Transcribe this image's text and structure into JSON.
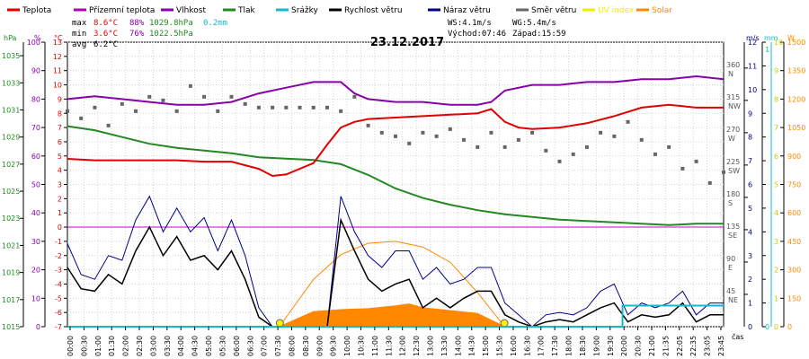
{
  "chart_data": {
    "type": "line",
    "title": "23.12.2017",
    "xlabel": "čas",
    "x_ticks": [
      "00:00",
      "00:30",
      "01:00",
      "01:30",
      "02:00",
      "02:30",
      "03:00",
      "03:30",
      "04:00",
      "04:30",
      "05:00",
      "05:30",
      "06:00",
      "06:30",
      "07:00",
      "07:30",
      "08:00",
      "08:30",
      "09:00",
      "09:30",
      "10:00",
      "10:30",
      "11:00",
      "11:30",
      "12:00",
      "12:30",
      "13:00",
      "13:30",
      "14:00",
      "14:30",
      "15:00",
      "15:30",
      "16:00",
      "16:30",
      "17:00",
      "17:30",
      "18:00",
      "18:30",
      "19:00",
      "19:30",
      "20:00",
      "20:30",
      "21:00",
      "21:35",
      "22:05",
      "22:35",
      "23:05",
      "23:45"
    ],
    "legend": [
      {
        "name": "Teplota",
        "color": "#e00000"
      },
      {
        "name": "Přízemní teplota",
        "color": "#b000b0"
      },
      {
        "name": "Vlhkost",
        "color": "#8800aa"
      },
      {
        "name": "Tlak",
        "color": "#228822"
      },
      {
        "name": "Srážky",
        "color": "#11bbcc"
      },
      {
        "name": "Rychlost větru",
        "color": "#000000"
      },
      {
        "name": "Náraz větru",
        "color": "#000088"
      },
      {
        "name": "Směr větru",
        "color": "#666666"
      },
      {
        "name": "UV index",
        "color": "#eeee00"
      },
      {
        "name": "Solar",
        "color": "#ff8800"
      }
    ],
    "stats": {
      "max": {
        "label": "max",
        "temp": "8.6°C",
        "hum": "88%",
        "press": "1029.8hPa",
        "rain": "0.2mm"
      },
      "min": {
        "label": "min",
        "temp": "3.6°C",
        "hum": "76%",
        "press": "1022.5hPa"
      },
      "avg": {
        "label": "avg",
        "temp": "6.2°C"
      }
    },
    "info": {
      "ws": "WS:4.1m/s",
      "wg": "WG:5.4m/s",
      "sunrise": "Východ:07:46",
      "sunset": "Západ:15:59"
    },
    "axes": {
      "hpa": {
        "unit": "hPa",
        "ticks": [
          "1035",
          "1033",
          "1031",
          "1029",
          "1027",
          "1025",
          "1023",
          "1021",
          "1019",
          "1017",
          "1015"
        ],
        "range": [
          1015,
          1036
        ]
      },
      "pct": {
        "unit": "%",
        "ticks": [
          "100",
          "90",
          "80",
          "70",
          "60",
          "50",
          "40",
          "30",
          "20",
          "10",
          "0"
        ],
        "range": [
          0,
          100
        ]
      },
      "temp": {
        "unit": "°C",
        "ticks": [
          "13",
          "12",
          "11",
          "10",
          "9",
          "8",
          "7",
          "6",
          "5",
          "4",
          "3",
          "2",
          "1",
          "0",
          "-1",
          "-2",
          "-3",
          "-4",
          "-5",
          "-6",
          "-7"
        ],
        "range": [
          -7,
          13
        ]
      },
      "dir": {
        "ticks": [
          [
            "360",
            "N"
          ],
          [
            "315",
            "NW"
          ],
          [
            "270",
            "W"
          ],
          [
            "225",
            "SW"
          ],
          [
            "180",
            "S"
          ],
          [
            "135",
            "SE"
          ],
          [
            "90",
            "E"
          ],
          [
            "45",
            "NE"
          ]
        ],
        "range": [
          0,
          360
        ]
      },
      "ms": {
        "unit": "m/s",
        "ticks": [
          "12",
          "11",
          "10",
          "9",
          "8",
          "7",
          "6",
          "5",
          "4",
          "3",
          "2",
          "1",
          "0"
        ],
        "range": [
          0,
          12
        ]
      },
      "mm": {
        "unit": "mm",
        "ticks": [
          "1",
          "0"
        ]
      },
      "w": {
        "unit": "W",
        "ticks": [
          "1500",
          "1350",
          "1200",
          "1050",
          "900",
          "750",
          "600",
          "450",
          "300",
          "150",
          "0"
        ],
        "range": [
          0,
          1500
        ]
      }
    },
    "series": {
      "temperature": {
        "unit": "°C",
        "hours": [
          0,
          1,
          2,
          3,
          4,
          5,
          6,
          7,
          7.5,
          8,
          9,
          9.5,
          10,
          10.5,
          11,
          12,
          13,
          14,
          15,
          15.5,
          16,
          16.5,
          17,
          18,
          19,
          20,
          21,
          22,
          23,
          24
        ],
        "values": [
          4.8,
          4.7,
          4.7,
          4.7,
          4.7,
          4.6,
          4.6,
          4.1,
          3.6,
          3.7,
          4.5,
          5.8,
          7.0,
          7.4,
          7.6,
          7.7,
          7.8,
          7.9,
          8.0,
          8.3,
          7.4,
          7.0,
          6.9,
          7.0,
          7.3,
          7.8,
          8.4,
          8.6,
          8.4,
          8.4
        ]
      },
      "humidity": {
        "unit": "%",
        "hours": [
          0,
          1,
          2,
          3,
          4,
          5,
          6,
          7,
          8,
          9,
          10,
          10.5,
          11,
          12,
          13,
          14,
          15,
          15.5,
          16,
          17,
          18,
          19,
          20,
          21,
          22,
          23,
          24
        ],
        "values": [
          80,
          81,
          80,
          79,
          78,
          78,
          79,
          82,
          84,
          86,
          86,
          82,
          80,
          79,
          79,
          78,
          78,
          79,
          83,
          85,
          85,
          86,
          86,
          87,
          87,
          88,
          87
        ]
      },
      "pressure": {
        "unit": "hPa",
        "hours": [
          0,
          1,
          2,
          3,
          4,
          5,
          6,
          7,
          8,
          9,
          10,
          11,
          12,
          13,
          14,
          15,
          16,
          17,
          18,
          19,
          20,
          21,
          22,
          23,
          24
        ],
        "values": [
          1029.8,
          1029.5,
          1029.0,
          1028.5,
          1028.2,
          1028.0,
          1027.8,
          1027.5,
          1027.4,
          1027.3,
          1027.0,
          1026.2,
          1025.2,
          1024.5,
          1024.0,
          1023.6,
          1023.3,
          1023.1,
          1022.9,
          1022.8,
          1022.7,
          1022.6,
          1022.5,
          1022.6,
          1022.6
        ]
      },
      "rain": {
        "unit": "mm",
        "hours": [
          0,
          20.3,
          20.3,
          24
        ],
        "values": [
          0,
          0,
          0.2,
          0.2
        ]
      },
      "wind_speed": {
        "unit": "m/s",
        "hours": [
          0,
          0.5,
          1,
          1.5,
          2,
          2.5,
          3,
          3.5,
          4,
          4.5,
          5,
          5.5,
          6,
          6.5,
          7,
          7.5,
          8,
          8.5,
          9,
          9.5,
          10,
          10.5,
          11,
          11.5,
          12,
          12.5,
          13,
          13.5,
          14,
          14.5,
          15,
          15.5,
          16,
          16.5,
          17,
          17.5,
          18,
          18.5,
          19,
          19.5,
          20,
          20.5,
          21,
          21.5,
          22,
          22.5,
          23,
          23.5,
          24
        ],
        "values": [
          2.5,
          1.6,
          1.5,
          2.2,
          1.8,
          3.2,
          4.2,
          3.0,
          3.8,
          2.8,
          3.0,
          2.4,
          3.2,
          2.0,
          0.4,
          0,
          0,
          0,
          0,
          0,
          4.5,
          3.2,
          2.0,
          1.5,
          1.8,
          2.0,
          0.8,
          1.2,
          0.8,
          1.2,
          1.5,
          1.5,
          0.5,
          0.2,
          0,
          0.2,
          0.3,
          0.2,
          0.5,
          0.8,
          1.0,
          0.2,
          0.5,
          0.4,
          0.5,
          1.0,
          0.2,
          0.5,
          0.5
        ]
      },
      "wind_gust": {
        "unit": "m/s",
        "hours": [
          0,
          0.5,
          1,
          1.5,
          2,
          2.5,
          3,
          3.5,
          4,
          4.5,
          5,
          5.5,
          6,
          6.5,
          7,
          7.5,
          8,
          8.5,
          9,
          9.5,
          10,
          10.5,
          11,
          11.5,
          12,
          12.5,
          13,
          13.5,
          14,
          14.5,
          15,
          15.5,
          16,
          16.5,
          17,
          17.5,
          18,
          18.5,
          19,
          19.5,
          20,
          20.5,
          21,
          21.5,
          22,
          22.5,
          23,
          23.5,
          24
        ],
        "values": [
          3.5,
          2.2,
          2.0,
          3.0,
          2.8,
          4.5,
          5.5,
          4.0,
          5.0,
          4.0,
          4.6,
          3.2,
          4.5,
          3.0,
          0.8,
          0,
          0,
          0,
          0,
          0,
          5.5,
          4.0,
          3.0,
          2.5,
          3.2,
          3.2,
          2.0,
          2.5,
          1.8,
          2.0,
          2.5,
          2.5,
          1.0,
          0.5,
          0,
          0.5,
          0.6,
          0.5,
          0.8,
          1.5,
          1.8,
          0.5,
          1.0,
          0.8,
          1.0,
          1.5,
          0.5,
          1.0,
          1.0
        ]
      },
      "solar": {
        "unit": "W/m²",
        "hours": [
          7.75,
          9,
          10,
          11,
          12,
          12.5,
          13,
          14,
          15,
          15.99
        ],
        "values": [
          0,
          80,
          90,
          95,
          110,
          120,
          100,
          85,
          70,
          0
        ]
      },
      "solar_clear_sky": {
        "unit": "W/m²",
        "hours": [
          7.75,
          9,
          10,
          11,
          12,
          13,
          14,
          15,
          15.99
        ],
        "values": [
          0,
          250,
          380,
          440,
          450,
          420,
          340,
          180,
          0
        ]
      },
      "wind_direction": {
        "unit": "°",
        "hours": [
          0,
          0.5,
          1,
          1.5,
          2,
          2.5,
          3,
          3.5,
          4,
          4.5,
          5,
          5.5,
          6,
          6.5,
          7,
          7.5,
          8,
          8.5,
          9,
          9.5,
          10,
          10.5,
          11,
          11.5,
          12,
          12.5,
          13,
          13.5,
          14,
          14.5,
          15,
          15.5,
          16,
          16.5,
          17,
          17.5,
          18,
          18.5,
          19,
          19.5,
          20,
          20.5,
          21,
          21.5,
          22,
          22.5,
          23,
          23.5,
          24
        ],
        "values": [
          300,
          290,
          305,
          280,
          310,
          300,
          320,
          315,
          300,
          335,
          320,
          300,
          320,
          310,
          305,
          305,
          305,
          305,
          305,
          305,
          300,
          320,
          280,
          270,
          265,
          255,
          270,
          265,
          275,
          260,
          250,
          270,
          250,
          260,
          270,
          245,
          230,
          240,
          250,
          270,
          265,
          285,
          260,
          240,
          250,
          220,
          230,
          200,
          215
        ]
      }
    }
  }
}
